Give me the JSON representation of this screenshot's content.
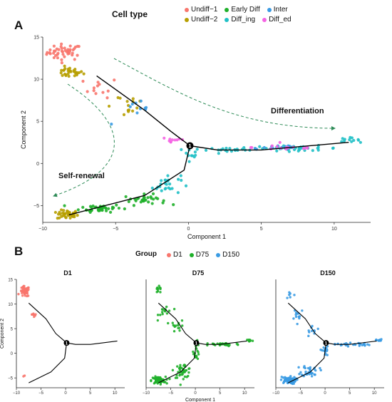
{
  "panels": {
    "A": {
      "letter": "A",
      "legend_title": "Cell type",
      "legend_items": [
        {
          "name": "Undiff−1",
          "color": "#F8766D"
        },
        {
          "name": "Early Diff",
          "color": "#1FB02A"
        },
        {
          "name": "Inter",
          "color": "#3A9BE3"
        },
        {
          "name": "Undiff−2",
          "color": "#B79F00"
        },
        {
          "name": "Diff_ing",
          "color": "#20C0C6"
        },
        {
          "name": "Diff_ed",
          "color": "#F564E3"
        }
      ],
      "annotations": [
        "Differentiation",
        "Self-renewal"
      ],
      "branch_label": "1"
    },
    "B": {
      "letter": "B",
      "legend_title": "Group",
      "legend_items": [
        {
          "name": "D1",
          "color": "#F8766D"
        },
        {
          "name": "D75",
          "color": "#1FB02A"
        },
        {
          "name": "D150",
          "color": "#3A9BE3"
        }
      ],
      "facets": [
        "D1",
        "D75",
        "D150"
      ],
      "branch_label": "1"
    }
  },
  "chart_data": [
    {
      "type": "scatter",
      "panel": "A",
      "xlabel": "Component 1",
      "ylabel": "Component 2",
      "xlim": [
        -10,
        12.5
      ],
      "ylim": [
        -7,
        15
      ],
      "xticks": [
        -10,
        -5,
        0,
        5,
        10
      ],
      "yticks": [
        -5,
        0,
        5,
        10,
        15
      ],
      "series": [
        {
          "name": "Undiff−1",
          "color": "#F8766D",
          "clusters": [
            [
              -8.5,
              13.2,
              1.0,
              0.8,
              45
            ],
            [
              -6.0,
              9.0,
              1.0,
              1.0,
              12
            ]
          ]
        },
        {
          "name": "Undiff−2",
          "color": "#B79F00",
          "clusters": [
            [
              -8.2,
              10.8,
              0.8,
              0.5,
              30
            ],
            [
              -8.3,
              -6.1,
              0.6,
              0.45,
              40
            ],
            [
              -4.5,
              7.0,
              1.5,
              1.2,
              14
            ]
          ]
        },
        {
          "name": "Early Diff",
          "color": "#1FB02A",
          "clusters": [
            [
              -6.0,
              -5.3,
              1.2,
              0.4,
              45
            ],
            [
              -3.0,
              -4.3,
              1.2,
              0.5,
              30
            ]
          ]
        },
        {
          "name": "Diff_ing",
          "color": "#20C0C6",
          "clusters": [
            [
              -1.5,
              -2.5,
              0.8,
              1.0,
              25
            ],
            [
              0.2,
              1.5,
              0.4,
              1.0,
              12
            ],
            [
              3.0,
              1.6,
              1.5,
              0.2,
              20
            ],
            [
              7.5,
              1.8,
              2.5,
              0.25,
              35
            ],
            [
              11.0,
              2.8,
              0.6,
              0.2,
              12
            ]
          ]
        },
        {
          "name": "Inter",
          "color": "#3A9BE3",
          "clusters": [
            [
              -3.5,
              6.0,
              1.5,
              1.2,
              10
            ],
            [
              6.0,
              1.9,
              1.5,
              0.3,
              14
            ]
          ]
        },
        {
          "name": "Diff_ed",
          "color": "#F564E3",
          "clusters": [
            [
              -1.0,
              2.8,
              0.8,
              0.4,
              10
            ],
            [
              6.8,
              1.9,
              2.0,
              0.3,
              16
            ]
          ]
        }
      ],
      "trajectory": [
        [
          [
            -6.3,
            10.4
          ],
          [
            -3,
            6.3
          ],
          [
            -1.2,
            3.8
          ],
          [
            0.1,
            2.1
          ]
        ],
        [
          [
            0.1,
            2.1
          ],
          [
            -0.3,
            -0.8
          ],
          [
            -3,
            -3.8
          ],
          [
            -8.2,
            -6.1
          ]
        ],
        [
          [
            0.1,
            2.1
          ],
          [
            2.0,
            1.6
          ],
          [
            5.0,
            1.6
          ],
          [
            11.0,
            2.5
          ]
        ]
      ],
      "branch_point": [
        0.1,
        2.1
      ]
    },
    {
      "type": "scatter",
      "panel": "B",
      "facets": [
        "D1",
        "D75",
        "D150"
      ],
      "xlabel": "Component 1",
      "ylabel": "Component 2",
      "xlim": [
        -10,
        12
      ],
      "ylim": [
        -7,
        15
      ],
      "xticks": [
        -10,
        -5,
        0,
        5,
        10
      ],
      "yticks": [
        -5,
        0,
        5,
        10,
        15
      ],
      "series": [
        {
          "name": "D1",
          "color": "#F8766D",
          "clusters": [
            [
              -8.3,
              12.5,
              0.8,
              0.9,
              50
            ],
            [
              -6.5,
              8.0,
              0.6,
              0.6,
              8
            ],
            [
              -8.6,
              -4.8,
              0.3,
              0.3,
              2
            ]
          ]
        },
        {
          "name": "D75",
          "color": "#1FB02A",
          "clusters": [
            [
              -7.5,
              12.8,
              0.7,
              0.6,
              12
            ],
            [
              -6.0,
              8.5,
              1.2,
              1.2,
              15
            ],
            [
              -3.5,
              5.5,
              1.2,
              1.0,
              14
            ],
            [
              0.2,
              0.5,
              0.5,
              1.5,
              20
            ],
            [
              -2.5,
              -3.5,
              1.5,
              1.2,
              40
            ],
            [
              -7.5,
              -5.5,
              1.2,
              0.6,
              70
            ],
            [
              5.5,
              1.8,
              3.0,
              0.3,
              35
            ],
            [
              11.0,
              2.6,
              0.5,
              0.2,
              10
            ]
          ]
        },
        {
          "name": "D150",
          "color": "#3A9BE3",
          "clusters": [
            [
              -7.0,
              12.0,
              0.8,
              0.8,
              6
            ],
            [
              -5.5,
              8.0,
              1.2,
              1.2,
              12
            ],
            [
              -2.5,
              4.5,
              1.2,
              1.0,
              10
            ],
            [
              0.0,
              0.5,
              0.5,
              1.5,
              18
            ],
            [
              -3.0,
              -3.5,
              1.5,
              1.0,
              35
            ],
            [
              -7.5,
              -5.5,
              1.3,
              0.6,
              75
            ],
            [
              5.5,
              1.8,
              3.0,
              0.3,
              30
            ],
            [
              11.0,
              2.6,
              0.5,
              0.2,
              10
            ]
          ]
        }
      ],
      "trajectory": [
        [
          [
            -7.5,
            10.2
          ],
          [
            -4,
            7.0
          ],
          [
            -2,
            4.0
          ],
          [
            0.2,
            2.1
          ]
        ],
        [
          [
            0.2,
            2.1
          ],
          [
            -0.2,
            -1.0
          ],
          [
            -3,
            -3.8
          ],
          [
            -7.5,
            -6.0
          ]
        ],
        [
          [
            0.2,
            2.1
          ],
          [
            2,
            1.8
          ],
          [
            5,
            1.8
          ],
          [
            10.5,
            2.5
          ]
        ]
      ],
      "branch_point": [
        0.2,
        2.1
      ]
    }
  ]
}
